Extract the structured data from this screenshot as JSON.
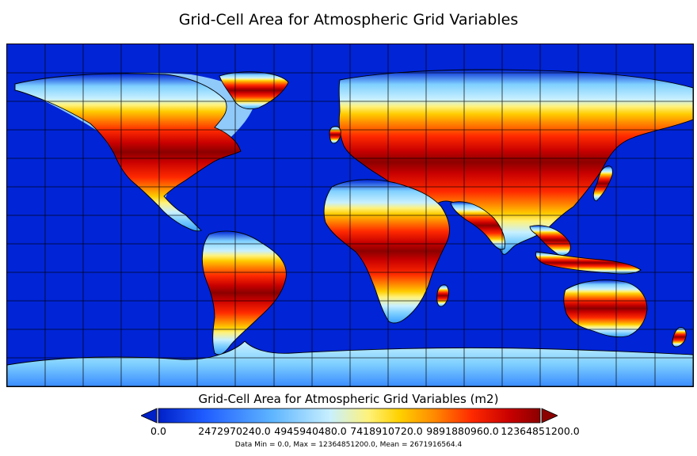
{
  "title": "Grid-Cell Area for Atmospheric Grid Variables",
  "map": {
    "projection": "equirectangular",
    "grid_lines": "on",
    "ocean_color": "#0024d6",
    "palette": [
      "#0024d6",
      "#1f5cff",
      "#5fb6ff",
      "#b7ecff",
      "#fff27a",
      "#ffd200",
      "#ff8c00",
      "#ff2a00",
      "#d80000",
      "#8c0000"
    ]
  },
  "colorbar": {
    "label": "Grid-Cell Area for Atmospheric Grid Variables (m2)",
    "ticks": [
      "0.0",
      "2472970240.0",
      "4945940480.0",
      "7418910720.0",
      "9891880960.0",
      "12364851200.0"
    ],
    "min": 0.0,
    "max": 12364851200.0,
    "extend": "both"
  },
  "stats": "Data Min = 0.0, Max = 12364851200.0, Mean = 2671916564.4"
}
